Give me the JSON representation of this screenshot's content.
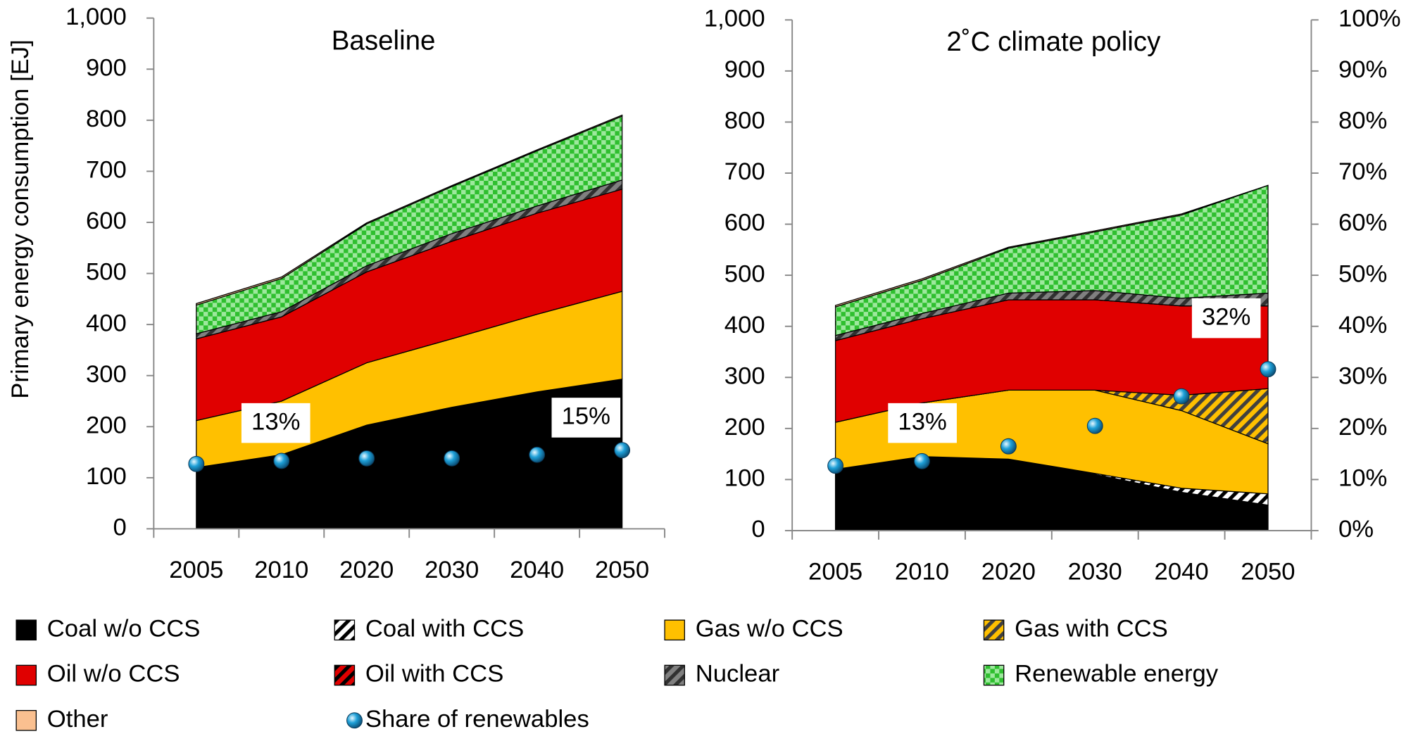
{
  "chart_data": [
    {
      "type": "area",
      "title": "Baseline",
      "ylabel": "Primary energy consumption [EJ]",
      "categories": [
        "2005",
        "2010",
        "2020",
        "2030",
        "2040",
        "2050"
      ],
      "ylim": [
        0,
        1000
      ],
      "yticks": [
        0,
        100,
        200,
        300,
        400,
        500,
        600,
        700,
        800,
        900,
        {
          "value": 1000,
          "label": "1,000"
        }
      ],
      "y2lim": [
        0,
        100
      ],
      "annotations": [
        "13%",
        "15%"
      ],
      "series": [
        {
          "name": "Coal w/o CCS",
          "color": "#000000",
          "values": [
            120,
            145,
            203,
            238,
            268,
            293
          ]
        },
        {
          "name": "Coal with CCS",
          "color": "#ffffff",
          "pattern": "stripes",
          "color2": "#000000",
          "values": [
            0,
            0,
            0,
            0,
            0,
            0
          ]
        },
        {
          "name": "Gas w/o CCS",
          "color": "#ffc000",
          "values": [
            92,
            105,
            122,
            134,
            152,
            172
          ]
        },
        {
          "name": "Gas with CCS",
          "color": "#ffc000",
          "pattern": "stripes",
          "color2": "#404040",
          "values": [
            0,
            0,
            0,
            0,
            0,
            0
          ]
        },
        {
          "name": "Oil w/o CCS",
          "color": "#e00000",
          "values": [
            160,
            165,
            178,
            191,
            198,
            200
          ]
        },
        {
          "name": "Oil with CCS",
          "color": "#e00000",
          "pattern": "stripes",
          "color2": "#000000",
          "values": [
            0,
            0,
            0,
            0,
            0,
            0
          ]
        },
        {
          "name": "Nuclear",
          "color": "#808080",
          "pattern": "stripes",
          "color2": "#303030",
          "values": [
            10,
            10,
            12,
            15,
            14,
            18
          ]
        },
        {
          "name": "Renewable energy",
          "color": "#2fbf2f",
          "pattern": "checker",
          "color2": "#9de89d",
          "values": [
            56,
            65,
            82,
            92,
            108,
            125
          ]
        },
        {
          "name": "Other",
          "color": "#fac090",
          "values": [
            3,
            3,
            2,
            2,
            2,
            2
          ]
        },
        {
          "name": "Share of renewables",
          "type": "scatter",
          "axis": "y2",
          "color": "#1ea0d8",
          "values": [
            12.7,
            13.3,
            13.8,
            13.8,
            14.5,
            15.4
          ]
        }
      ]
    },
    {
      "type": "area",
      "title": "2˚C climate policy",
      "categories": [
        "2005",
        "2010",
        "2020",
        "2030",
        "2040",
        "2050"
      ],
      "ylim": [
        0,
        1000
      ],
      "yticks": [
        0,
        100,
        200,
        300,
        400,
        500,
        600,
        700,
        800,
        900,
        {
          "value": 1000,
          "label": "1,000"
        }
      ],
      "y2lim": [
        0,
        100
      ],
      "y2ticks": [
        {
          "value": 0,
          "label": "0%"
        },
        {
          "value": 10,
          "label": "10%"
        },
        {
          "value": 20,
          "label": "20%"
        },
        {
          "value": 30,
          "label": "30%"
        },
        {
          "value": 40,
          "label": "40%"
        },
        {
          "value": 50,
          "label": "50%"
        },
        {
          "value": 60,
          "label": "60%"
        },
        {
          "value": 70,
          "label": "70%"
        },
        {
          "value": 80,
          "label": "80%"
        },
        {
          "value": 90,
          "label": "90%"
        },
        {
          "value": 100,
          "label": "100%"
        }
      ],
      "annotations": [
        "13%",
        "32%"
      ],
      "series": [
        {
          "color": "#000000",
          "values": [
            120,
            145,
            140,
            110,
            75,
            50
          ]
        },
        {
          "color": "#ffffff",
          "pattern": "stripes",
          "color2": "#000000",
          "values": [
            0,
            0,
            0,
            2,
            8,
            22
          ]
        },
        {
          "color": "#ffc000",
          "values": [
            92,
            105,
            135,
            163,
            152,
            98
          ]
        },
        {
          "color": "#ffc000",
          "pattern": "stripes",
          "color2": "#404040",
          "values": [
            0,
            0,
            0,
            0,
            30,
            108
          ]
        },
        {
          "color": "#e00000",
          "values": [
            160,
            165,
            177,
            177,
            175,
            162
          ]
        },
        {
          "color": "#e00000",
          "pattern": "stripes",
          "color2": "#000000",
          "values": [
            0,
            0,
            0,
            0,
            0,
            0
          ]
        },
        {
          "color": "#808080",
          "pattern": "stripes",
          "color2": "#303030",
          "values": [
            10,
            10,
            13,
            18,
            15,
            25
          ]
        },
        {
          "color": "#2fbf2f",
          "pattern": "checker",
          "color2": "#9de89d",
          "values": [
            56,
            65,
            88,
            115,
            163,
            211
          ]
        },
        {
          "color": "#fac090",
          "values": [
            3,
            3,
            2,
            2,
            2,
            0
          ]
        },
        {
          "type": "scatter",
          "axis": "y2",
          "color": "#1ea0d8",
          "values": [
            12.7,
            13.6,
            16.5,
            20.5,
            26.3,
            31.6
          ]
        }
      ]
    }
  ]
}
